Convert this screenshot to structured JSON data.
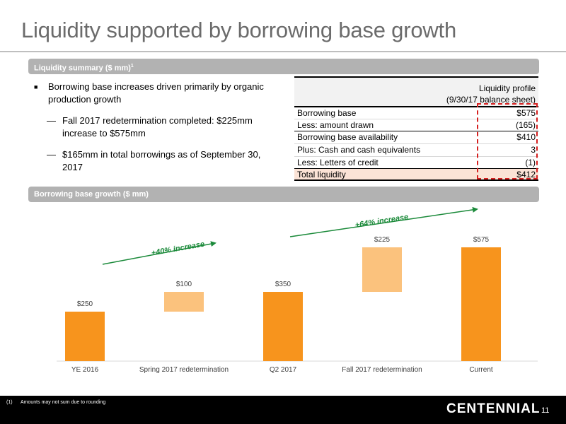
{
  "title": "Liquidity supported by borrowing base growth",
  "sections": {
    "liquidity_summary": {
      "label": "Liquidity summary ($ mm)",
      "sup": "1"
    },
    "borrowing_growth": {
      "label": "Borrowing base growth ($ mm)"
    }
  },
  "bullets": {
    "main": "Borrowing base increases driven primarily by organic production growth",
    "sub": [
      "Fall 2017 redetermination completed: $225mm increase to $575mm",
      "$165mm in total borrowings as of September 30, 2017"
    ]
  },
  "liquidity_table": {
    "header_line1": "Liquidity profile",
    "header_line2": "(9/30/17 balance sheet)",
    "rows": [
      {
        "label": "Borrowing base",
        "value": "$575"
      },
      {
        "label": "Less: amount drawn",
        "value": "(165)"
      },
      {
        "label": "Borrowing base availability",
        "value": "$410"
      },
      {
        "label": "Plus: Cash and cash equivalents",
        "value": "3"
      },
      {
        "label": "Less: Letters of credit",
        "value": "(1)"
      },
      {
        "label": "Total liquidity",
        "value": "$412"
      }
    ]
  },
  "chart_data": {
    "type": "bar",
    "subtype": "waterfall",
    "categories": [
      "YE 2016",
      "Spring 2017 redetermination",
      "Q2 2017",
      "Fall 2017 redetermination",
      "Current"
    ],
    "values": [
      250,
      100,
      350,
      225,
      575
    ],
    "bar_kind": [
      "total",
      "increase",
      "total",
      "increase",
      "total"
    ],
    "data_labels": [
      "$250",
      "$100",
      "$350",
      "$225",
      "$575"
    ],
    "annotations": [
      "+40% increase",
      "+64% increase"
    ],
    "ylim": [
      0,
      575
    ],
    "colors": {
      "total": "#f7941d",
      "increase": "#fbc27d",
      "arrow": "#1b8a3a"
    }
  },
  "footer": {
    "footnote_number": "(1)",
    "footnote_text": "Amounts may not sum due to rounding",
    "logo": "CENTENNIAL",
    "page_number": "11"
  },
  "colors": {
    "title": "#6b6b6b",
    "section_bar": "#b2b2b2",
    "total_row": "#fbe3d6",
    "highlight": "#d62020"
  }
}
